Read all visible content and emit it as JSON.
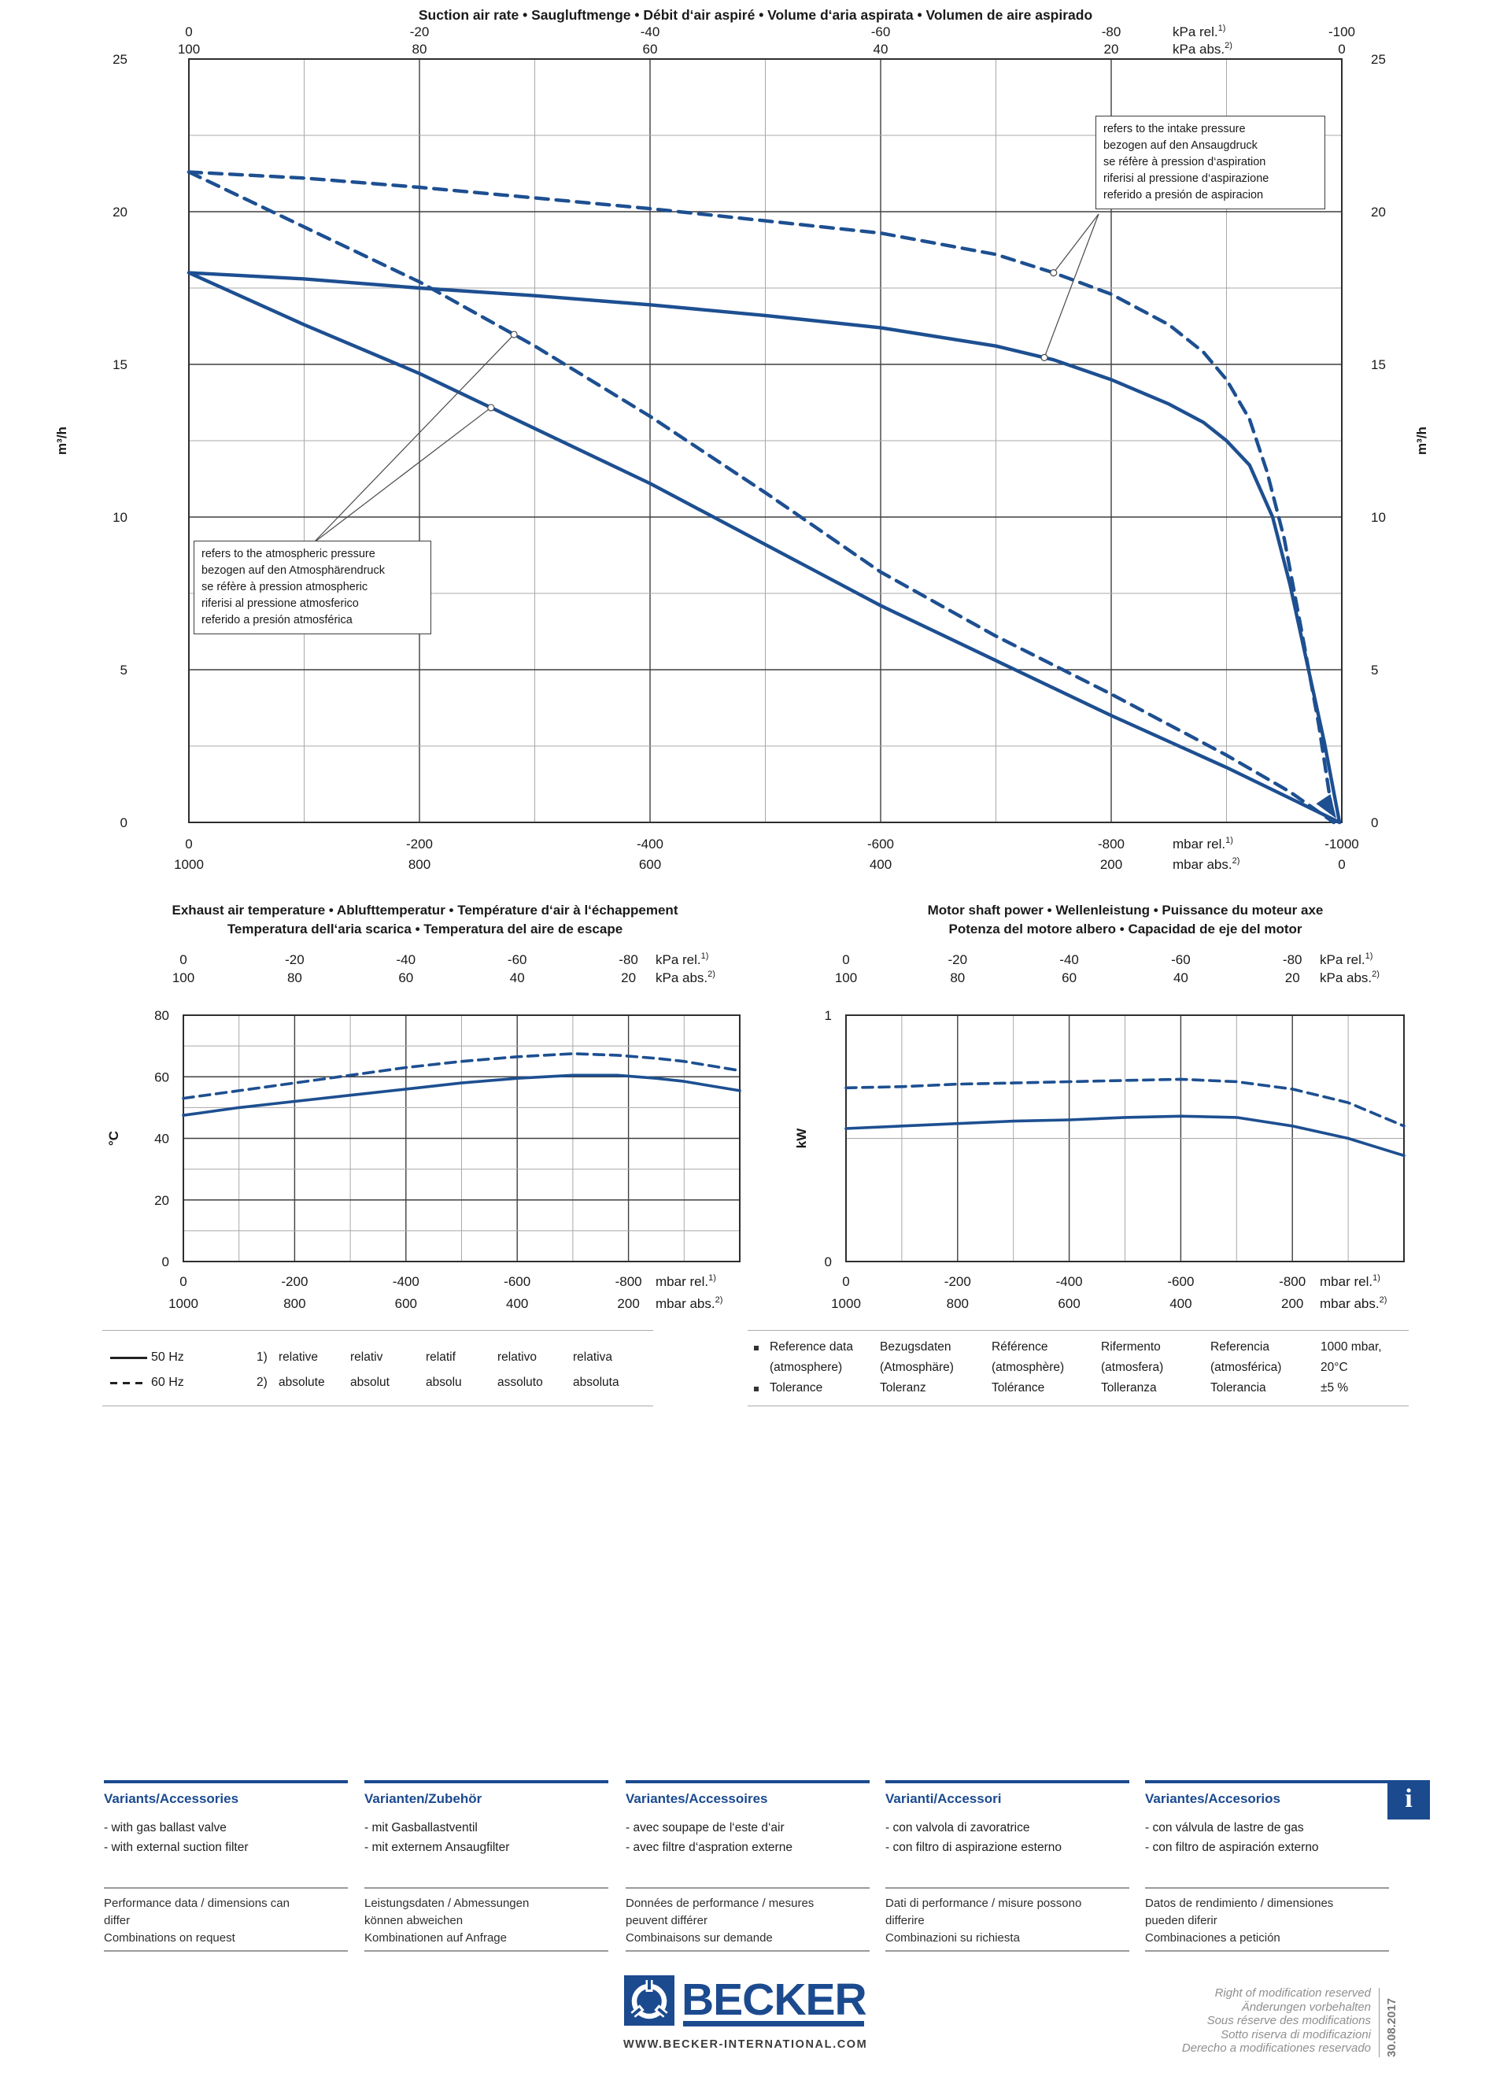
{
  "colors": {
    "curve_blue": "#1d4f91",
    "brand_blue": "#1b4a8f",
    "grid_major": "#3f3f3f",
    "grid_minor": "#a8a8a8"
  },
  "chart_data": [
    {
      "type": "line",
      "title": "Suction air rate  •  Saugluftmenge  •  Débit d‘air aspiré  •  Volume d‘aria aspirata  •  Volumen de aire aspirado",
      "xlim": [
        0,
        -1000
      ],
      "grid": true,
      "axes": {
        "top1": {
          "ticks": [
            "0",
            "-20",
            "-40",
            "-60",
            "-80"
          ],
          "unit": "kPa rel.",
          "sup": "1)",
          "end": "-100"
        },
        "top2": {
          "ticks": [
            "100",
            "80",
            "60",
            "40",
            "20"
          ],
          "unit": "kPa abs.",
          "sup": "2)",
          "end": "0"
        },
        "bottom1": {
          "ticks": [
            "0",
            "-200",
            "-400",
            "-600",
            "-800"
          ],
          "unit": "mbar rel.",
          "sup": "1)",
          "end": "-1000"
        },
        "bottom2": {
          "ticks": [
            "1000",
            "800",
            "600",
            "400",
            "200"
          ],
          "unit": "mbar abs.",
          "sup": "2)",
          "end": "0"
        },
        "y": {
          "label": "m³/h",
          "ticks": [
            "0",
            "5",
            "10",
            "15",
            "20",
            "25"
          ],
          "max": 25
        }
      },
      "series": [
        {
          "name": "50 Hz — referred to intake pressure",
          "freq": "50 Hz",
          "dash": false,
          "points": [
            [
              0,
              18.0
            ],
            [
              -100,
              17.8
            ],
            [
              -200,
              17.5
            ],
            [
              -300,
              17.25
            ],
            [
              -400,
              16.95
            ],
            [
              -500,
              16.6
            ],
            [
              -600,
              16.2
            ],
            [
              -700,
              15.6
            ],
            [
              -750,
              15.15
            ],
            [
              -800,
              14.5
            ],
            [
              -850,
              13.7
            ],
            [
              -880,
              13.1
            ],
            [
              -900,
              12.5
            ],
            [
              -920,
              11.7
            ],
            [
              -940,
              10.0
            ],
            [
              -955,
              7.8
            ],
            [
              -970,
              5.2
            ],
            [
              -985,
              2.6
            ],
            [
              -998,
              0
            ]
          ]
        },
        {
          "name": "60 Hz — referred to intake pressure",
          "freq": "60 Hz",
          "dash": true,
          "points": [
            [
              0,
              21.3
            ],
            [
              -100,
              21.1
            ],
            [
              -200,
              20.8
            ],
            [
              -300,
              20.45
            ],
            [
              -400,
              20.1
            ],
            [
              -500,
              19.7
            ],
            [
              -600,
              19.3
            ],
            [
              -700,
              18.6
            ],
            [
              -750,
              18.0
            ],
            [
              -800,
              17.3
            ],
            [
              -850,
              16.3
            ],
            [
              -880,
              15.4
            ],
            [
              -900,
              14.5
            ],
            [
              -920,
              13.2
            ],
            [
              -935,
              11.5
            ],
            [
              -950,
              9.3
            ],
            [
              -965,
              6.3
            ],
            [
              -980,
              3.2
            ],
            [
              -993,
              0
            ]
          ]
        },
        {
          "name": "50 Hz — referred to atmospheric pressure",
          "freq": "50 Hz",
          "dash": false,
          "points": [
            [
              0,
              18.0
            ],
            [
              -100,
              16.3
            ],
            [
              -200,
              14.7
            ],
            [
              -300,
              12.9
            ],
            [
              -400,
              11.1
            ],
            [
              -500,
              9.1
            ],
            [
              -600,
              7.1
            ],
            [
              -700,
              5.3
            ],
            [
              -800,
              3.5
            ],
            [
              -900,
              1.8
            ],
            [
              -960,
              0.7
            ],
            [
              -998,
              0
            ]
          ]
        },
        {
          "name": "60 Hz — referred to atmospheric pressure",
          "freq": "60 Hz",
          "dash": true,
          "points": [
            [
              0,
              21.3
            ],
            [
              -100,
              19.5
            ],
            [
              -200,
              17.7
            ],
            [
              -300,
              15.6
            ],
            [
              -400,
              13.3
            ],
            [
              -500,
              10.8
            ],
            [
              -600,
              8.2
            ],
            [
              -700,
              6.1
            ],
            [
              -800,
              4.2
            ],
            [
              -900,
              2.2
            ],
            [
              -955,
              1.0
            ],
            [
              -993,
              0
            ]
          ]
        }
      ]
    },
    {
      "type": "line",
      "title": "Exhaust air temperature  •  Ablufttemperatur  •  Température d‘air à l‘échappement",
      "title2": "Temperatura dell‘aria scarica  •  Temperatura del aire de escape",
      "xlim": [
        0,
        -1000
      ],
      "grid": true,
      "axes": {
        "top1": {
          "ticks": [
            "0",
            "-20",
            "-40",
            "-60",
            "-80"
          ],
          "unit": "kPa rel.",
          "sup": "1)"
        },
        "top2": {
          "ticks": [
            "100",
            "80",
            "60",
            "40",
            "20"
          ],
          "unit": "kPa abs.",
          "sup": "2)"
        },
        "bottom1": {
          "ticks": [
            "0",
            "-200",
            "-400",
            "-600",
            "-800"
          ],
          "unit": "mbar rel.",
          "sup": "1)"
        },
        "bottom2": {
          "ticks": [
            "1000",
            "800",
            "600",
            "400",
            "200"
          ],
          "unit": "mbar abs.",
          "sup": "2)"
        },
        "y": {
          "label": "°C",
          "ticks": [
            "0",
            "20",
            "40",
            "60",
            "80"
          ],
          "max": 80
        }
      },
      "series": [
        {
          "name": "50 Hz",
          "freq": "50 Hz",
          "dash": false,
          "points": [
            [
              0,
              47.5
            ],
            [
              -100,
              50
            ],
            [
              -200,
              52
            ],
            [
              -300,
              54
            ],
            [
              -400,
              56
            ],
            [
              -500,
              58
            ],
            [
              -600,
              59.5
            ],
            [
              -700,
              60.5
            ],
            [
              -780,
              60.5
            ],
            [
              -850,
              59.5
            ],
            [
              -900,
              58.5
            ],
            [
              -1000,
              55.5
            ]
          ]
        },
        {
          "name": "60 Hz",
          "freq": "60 Hz",
          "dash": true,
          "points": [
            [
              0,
              53
            ],
            [
              -100,
              55.5
            ],
            [
              -200,
              58
            ],
            [
              -300,
              60.5
            ],
            [
              -400,
              63
            ],
            [
              -500,
              65
            ],
            [
              -600,
              66.5
            ],
            [
              -700,
              67.5
            ],
            [
              -780,
              67
            ],
            [
              -850,
              66
            ],
            [
              -900,
              65
            ],
            [
              -1000,
              62
            ]
          ]
        }
      ]
    },
    {
      "type": "line",
      "title": "Motor shaft power  •  Wellenleistung  •  Puissance du moteur axe",
      "title2": "Potenza del motore albero  •  Capacidad de eje del motor",
      "xlim": [
        0,
        -1000
      ],
      "grid": true,
      "axes": {
        "top1": {
          "ticks": [
            "0",
            "-20",
            "-40",
            "-60",
            "-80"
          ],
          "unit": "kPa rel.",
          "sup": "1)"
        },
        "top2": {
          "ticks": [
            "100",
            "80",
            "60",
            "40",
            "20"
          ],
          "unit": "kPa abs.",
          "sup": "2)"
        },
        "bottom1": {
          "ticks": [
            "0",
            "-200",
            "-400",
            "-600",
            "-800"
          ],
          "unit": "mbar rel.",
          "sup": "1)"
        },
        "bottom2": {
          "ticks": [
            "1000",
            "800",
            "600",
            "400",
            "200"
          ],
          "unit": "mbar abs.",
          "sup": "2)"
        },
        "y": {
          "label": "kW",
          "ticks": [
            "0",
            "1"
          ],
          "max": 1
        }
      },
      "series": [
        {
          "name": "50 Hz",
          "freq": "50 Hz",
          "dash": false,
          "points": [
            [
              0,
              0.54
            ],
            [
              -100,
              0.55
            ],
            [
              -200,
              0.56
            ],
            [
              -300,
              0.57
            ],
            [
              -400,
              0.575
            ],
            [
              -500,
              0.585
            ],
            [
              -600,
              0.59
            ],
            [
              -700,
              0.585
            ],
            [
              -800,
              0.55
            ],
            [
              -900,
              0.5
            ],
            [
              -1000,
              0.43
            ]
          ]
        },
        {
          "name": "60 Hz",
          "freq": "60 Hz",
          "dash": true,
          "points": [
            [
              0,
              0.705
            ],
            [
              -100,
              0.71
            ],
            [
              -200,
              0.72
            ],
            [
              -300,
              0.725
            ],
            [
              -400,
              0.73
            ],
            [
              -500,
              0.735
            ],
            [
              -600,
              0.74
            ],
            [
              -700,
              0.73
            ],
            [
              -800,
              0.7
            ],
            [
              -900,
              0.645
            ],
            [
              -1000,
              0.55
            ]
          ]
        }
      ]
    }
  ],
  "annotations": {
    "intake": {
      "lines": [
        "refers to the intake pressure",
        "bezogen auf den Ansaugdruck",
        "se réfère à pression d‘aspiration",
        "riferisi al pressione d‘aspirazione",
        "referido a presión de aspiracion"
      ]
    },
    "atmospheric": {
      "lines": [
        "refers to the atmospheric pressure",
        "bezogen auf den Atmosphärendruck",
        "se réfère à pression atmospheric",
        "riferisi al pressione atmosferico",
        "referido a presión atmosférica"
      ]
    }
  },
  "legend": {
    "hz50": "50 Hz",
    "hz60": "60 Hz",
    "num1": "1)",
    "num2": "2)",
    "relative_words": [
      "relative",
      "relativ",
      "relatif",
      "relativo",
      "relativa"
    ],
    "absolute_words": [
      "absolute",
      "absolut",
      "absolu",
      "assoluto",
      "absoluta"
    ]
  },
  "reference": {
    "row1": [
      "Reference data",
      "Bezugsdaten",
      "Référence",
      "Rifermento",
      "Referencia"
    ],
    "row1b": [
      "(atmosphere)",
      "(Atmosphäre)",
      "(atmosphère)",
      "(atmosfera)",
      "(atmosférica)"
    ],
    "row1_value": "1000 mbar,",
    "row1b_value": "20°C",
    "row2": [
      "Tolerance",
      "Toleranz",
      "Tolérance",
      "Tolleranza",
      "Tolerancia"
    ],
    "row2_value": "±5 %"
  },
  "variants": {
    "info_icon": "i",
    "columns": [
      {
        "header": "Variants/Accessories",
        "items": [
          "- with gas ballast valve",
          "- with external suction filter"
        ],
        "perf": [
          "Performance data / dimensions can",
          "differ",
          "Combinations on request"
        ]
      },
      {
        "header": "Varianten/Zubehör",
        "items": [
          "- mit Gasballastventil",
          "- mit externem Ansaugfilter"
        ],
        "perf": [
          "Leistungsdaten / Abmessungen",
          "können abweichen",
          "Kombinationen auf Anfrage"
        ]
      },
      {
        "header": "Variantes/Accessoires",
        "items": [
          "- avec soupape de l‘este d‘air",
          "- avec filtre d‘aspration externe"
        ],
        "perf": [
          "Données de performance / mesures",
          "peuvent différer",
          "Combinaisons sur demande"
        ]
      },
      {
        "header": "Varianti/Accessori",
        "items": [
          "- con valvola di zavoratrice",
          "- con filtro di aspirazione esterno"
        ],
        "perf": [
          "Dati di performance / misure possono",
          "differire",
          "Combinazioni su richiesta"
        ]
      },
      {
        "header": "Variantes/Accesorios",
        "items": [
          "- con válvula de lastre de gas",
          "- con filtro de aspiración externo"
        ],
        "perf": [
          "Datos de rendimiento / dimensiones",
          "pueden diferir",
          "Combinaciones a petición"
        ]
      }
    ]
  },
  "footer": {
    "brand": "BECKER",
    "website": "WWW.BECKER-INTERNATIONAL.COM",
    "modification_lines": [
      "Right of modification reserved",
      "Änderungen vorbehalten",
      "Sous réserve des modifications",
      "Sotto riserva di modificazioni",
      "Derecho a modificationes reservado"
    ],
    "date": "30.08.2017"
  }
}
